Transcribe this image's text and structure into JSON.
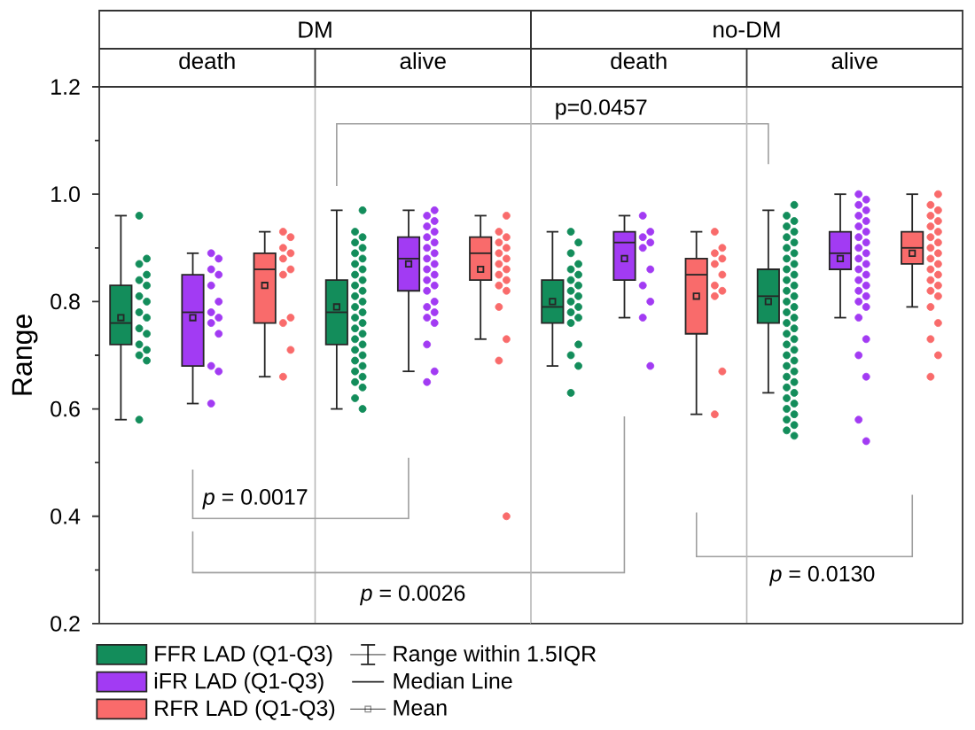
{
  "chart_data": [
    {
      "type": "box",
      "title": "DM",
      "ylabel": "Range",
      "categories": [
        "death",
        "alive"
      ],
      "ylim": [
        0.2,
        1.2
      ],
      "yticks": [
        0.2,
        0.4,
        0.6,
        0.8,
        {
          "value": 1.0,
          "label": "1.0"
        },
        1.2
      ],
      "legend": "bottom",
      "marker": "circle",
      "series": [
        {
          "type": "box",
          "name": "FFR LAD (Q1-Q3)",
          "color": "#138d5b",
          "boxes": [
            {
              "low": 0.58,
              "q1": 0.72,
              "median": 0.76,
              "q3": 0.83,
              "high": 0.96,
              "mean": 0.77
            },
            {
              "low": 0.6,
              "q1": 0.72,
              "median": 0.78,
              "q3": 0.84,
              "high": 0.97,
              "mean": 0.79
            }
          ]
        },
        {
          "type": "box",
          "name": "iFR LAD (Q1-Q3)",
          "color": "#a23bf3",
          "boxes": [
            {
              "low": 0.61,
              "q1": 0.68,
              "median": 0.78,
              "q3": 0.85,
              "high": 0.89,
              "mean": 0.77
            },
            {
              "low": 0.67,
              "q1": 0.82,
              "median": 0.88,
              "q3": 0.92,
              "high": 0.97,
              "mean": 0.87
            }
          ]
        },
        {
          "type": "box",
          "name": "RFR LAD (Q1-Q3)",
          "color": "#f96b6b",
          "boxes": [
            {
              "low": 0.66,
              "q1": 0.76,
              "median": 0.86,
              "q3": 0.89,
              "high": 0.93,
              "mean": 0.83
            },
            {
              "low": 0.73,
              "q1": 0.84,
              "median": 0.89,
              "q3": 0.92,
              "high": 0.96,
              "mean": 0.86
            }
          ]
        },
        {
          "type": "scatter",
          "color": "#138d5b",
          "x": [
            "death",
            "death",
            "death",
            "death",
            "death",
            "death",
            "death",
            "death",
            "death",
            "death",
            "death",
            "death",
            "death",
            "death",
            "death",
            "death",
            "death",
            "alive",
            "alive",
            "alive",
            "alive",
            "alive",
            "alive",
            "alive",
            "alive",
            "alive",
            "alive",
            "alive",
            "alive",
            "alive",
            "alive",
            "alive",
            "alive",
            "alive",
            "alive",
            "alive",
            "alive",
            "alive",
            "alive",
            "alive",
            "alive",
            "alive",
            "alive",
            "alive",
            "alive",
            "alive",
            "alive",
            "alive",
            "alive",
            "alive"
          ],
          "values": [
            0.96,
            0.88,
            0.87,
            0.85,
            0.84,
            0.83,
            0.81,
            0.8,
            0.78,
            0.77,
            0.75,
            0.74,
            0.72,
            0.71,
            0.7,
            0.69,
            0.58,
            0.97,
            0.93,
            0.92,
            0.91,
            0.9,
            0.89,
            0.88,
            0.87,
            0.86,
            0.85,
            0.84,
            0.83,
            0.82,
            0.81,
            0.8,
            0.79,
            0.78,
            0.77,
            0.76,
            0.75,
            0.74,
            0.73,
            0.72,
            0.71,
            0.7,
            0.69,
            0.68,
            0.67,
            0.66,
            0.65,
            0.64,
            0.62,
            0.6
          ]
        },
        {
          "type": "scatter",
          "color": "#a23bf3",
          "x": [
            "death",
            "death",
            "death",
            "death",
            "death",
            "death",
            "death",
            "death",
            "death",
            "death",
            "death",
            "death",
            "death",
            "alive",
            "alive",
            "alive",
            "alive",
            "alive",
            "alive",
            "alive",
            "alive",
            "alive",
            "alive",
            "alive",
            "alive",
            "alive",
            "alive",
            "alive",
            "alive",
            "alive",
            "alive",
            "alive",
            "alive",
            "alive",
            "alive",
            "alive",
            "alive"
          ],
          "values": [
            0.89,
            0.88,
            0.86,
            0.85,
            0.83,
            0.8,
            0.78,
            0.77,
            0.76,
            0.74,
            0.68,
            0.67,
            0.61,
            0.97,
            0.96,
            0.95,
            0.94,
            0.93,
            0.92,
            0.91,
            0.9,
            0.89,
            0.88,
            0.87,
            0.86,
            0.85,
            0.84,
            0.83,
            0.82,
            0.8,
            0.79,
            0.78,
            0.77,
            0.76,
            0.72,
            0.67,
            0.65
          ]
        },
        {
          "type": "scatter",
          "color": "#f96b6b",
          "x": [
            "death",
            "death",
            "death",
            "death",
            "death",
            "death",
            "death",
            "death",
            "death",
            "death",
            "death",
            "alive",
            "alive",
            "alive",
            "alive",
            "alive",
            "alive",
            "alive",
            "alive",
            "alive",
            "alive",
            "alive",
            "alive",
            "alive",
            "alive",
            "alive",
            "alive",
            "alive"
          ],
          "values": [
            0.93,
            0.92,
            0.9,
            0.89,
            0.88,
            0.86,
            0.85,
            0.77,
            0.76,
            0.71,
            0.66,
            0.96,
            0.93,
            0.92,
            0.91,
            0.9,
            0.89,
            0.88,
            0.87,
            0.86,
            0.85,
            0.84,
            0.83,
            0.82,
            0.79,
            0.73,
            0.69,
            0.4
          ]
        }
      ],
      "annotations": [
        "*p* = 0.0017",
        "*p* = 0.0026",
        "p=0.0457",
        "*p* = 0.0130",
        "Range within 1.5IQR",
        "Median Line",
        "Mean"
      ]
    },
    {
      "type": "box",
      "title": "no-DM",
      "categories": [
        "death",
        "alive"
      ],
      "ylim": [
        0.2,
        1.2
      ],
      "tick_labels": "x",
      "marker": "circle",
      "series": [
        {
          "type": "box",
          "color": "#138d5b",
          "boxes": [
            {
              "low": 0.68,
              "q1": 0.76,
              "median": 0.79,
              "q3": 0.84,
              "high": 0.93,
              "mean": 0.8
            },
            {
              "low": 0.63,
              "q1": 0.76,
              "median": 0.81,
              "q3": 0.86,
              "high": 0.97,
              "mean": 0.8
            }
          ]
        },
        {
          "type": "box",
          "color": "#a23bf3",
          "boxes": [
            {
              "low": 0.77,
              "q1": 0.84,
              "median": 0.91,
              "q3": 0.93,
              "high": 0.96,
              "mean": 0.88
            },
            {
              "low": 0.77,
              "q1": 0.86,
              "median": 0.89,
              "q3": 0.93,
              "high": 1.0,
              "mean": 0.88
            }
          ]
        },
        {
          "type": "box",
          "color": "#f96b6b",
          "boxes": [
            {
              "low": 0.59,
              "q1": 0.74,
              "median": 0.85,
              "q3": 0.88,
              "high": 0.93,
              "mean": 0.81
            },
            {
              "low": 0.79,
              "q1": 0.87,
              "median": 0.9,
              "q3": 0.93,
              "high": 1.0,
              "mean": 0.89
            }
          ]
        },
        {
          "type": "scatter",
          "color": "#138d5b",
          "x": [
            "death",
            "death",
            "death",
            "death",
            "death",
            "death",
            "death",
            "death",
            "death",
            "death",
            "death",
            "death",
            "death",
            "death",
            "death",
            "death",
            "death",
            "death",
            "death",
            "alive",
            "alive",
            "alive",
            "alive",
            "alive",
            "alive",
            "alive",
            "alive",
            "alive",
            "alive",
            "alive",
            "alive",
            "alive",
            "alive",
            "alive",
            "alive",
            "alive",
            "alive",
            "alive",
            "alive",
            "alive",
            "alive",
            "alive",
            "alive",
            "alive",
            "alive",
            "alive",
            "alive",
            "alive",
            "alive",
            "alive",
            "alive",
            "alive",
            "alive",
            "alive",
            "alive",
            "alive",
            "alive",
            "alive",
            "alive",
            "alive",
            "alive",
            "alive"
          ],
          "values": [
            0.93,
            0.91,
            0.89,
            0.87,
            0.86,
            0.85,
            0.84,
            0.83,
            0.82,
            0.81,
            0.8,
            0.79,
            0.78,
            0.77,
            0.76,
            0.72,
            0.7,
            0.68,
            0.63,
            0.98,
            0.96,
            0.95,
            0.94,
            0.93,
            0.92,
            0.91,
            0.9,
            0.89,
            0.88,
            0.87,
            0.86,
            0.85,
            0.84,
            0.83,
            0.82,
            0.81,
            0.8,
            0.79,
            0.78,
            0.77,
            0.76,
            0.75,
            0.74,
            0.73,
            0.72,
            0.71,
            0.7,
            0.69,
            0.68,
            0.67,
            0.66,
            0.65,
            0.64,
            0.63,
            0.62,
            0.61,
            0.6,
            0.59,
            0.58,
            0.57,
            0.56,
            0.55
          ]
        },
        {
          "type": "scatter",
          "color": "#a23bf3",
          "x": [
            "death",
            "death",
            "death",
            "death",
            "death",
            "death",
            "death",
            "death",
            "death",
            "death",
            "alive",
            "alive",
            "alive",
            "alive",
            "alive",
            "alive",
            "alive",
            "alive",
            "alive",
            "alive",
            "alive",
            "alive",
            "alive",
            "alive",
            "alive",
            "alive",
            "alive",
            "alive",
            "alive",
            "alive",
            "alive",
            "alive",
            "alive",
            "alive",
            "alive",
            "alive",
            "alive",
            "alive"
          ],
          "values": [
            0.96,
            0.93,
            0.92,
            0.91,
            0.9,
            0.86,
            0.83,
            0.8,
            0.77,
            0.68,
            1.0,
            0.99,
            0.98,
            0.97,
            0.96,
            0.95,
            0.94,
            0.93,
            0.92,
            0.91,
            0.9,
            0.89,
            0.88,
            0.87,
            0.86,
            0.85,
            0.84,
            0.83,
            0.82,
            0.81,
            0.8,
            0.79,
            0.77,
            0.73,
            0.7,
            0.66,
            0.58,
            0.54
          ]
        },
        {
          "type": "scatter",
          "color": "#f96b6b",
          "x": [
            "death",
            "death",
            "death",
            "death",
            "death",
            "death",
            "death",
            "death",
            "death",
            "death",
            "death",
            "alive",
            "alive",
            "alive",
            "alive",
            "alive",
            "alive",
            "alive",
            "alive",
            "alive",
            "alive",
            "alive",
            "alive",
            "alive",
            "alive",
            "alive",
            "alive",
            "alive",
            "alive",
            "alive",
            "alive",
            "alive",
            "alive",
            "alive",
            "alive"
          ],
          "values": [
            0.93,
            0.9,
            0.89,
            0.88,
            0.87,
            0.85,
            0.83,
            0.82,
            0.81,
            0.67,
            0.59,
            1.0,
            0.98,
            0.97,
            0.96,
            0.95,
            0.94,
            0.93,
            0.92,
            0.91,
            0.9,
            0.89,
            0.88,
            0.87,
            0.86,
            0.85,
            0.84,
            0.83,
            0.82,
            0.81,
            0.79,
            0.76,
            0.73,
            0.7,
            0.66
          ]
        }
      ]
    }
  ]
}
